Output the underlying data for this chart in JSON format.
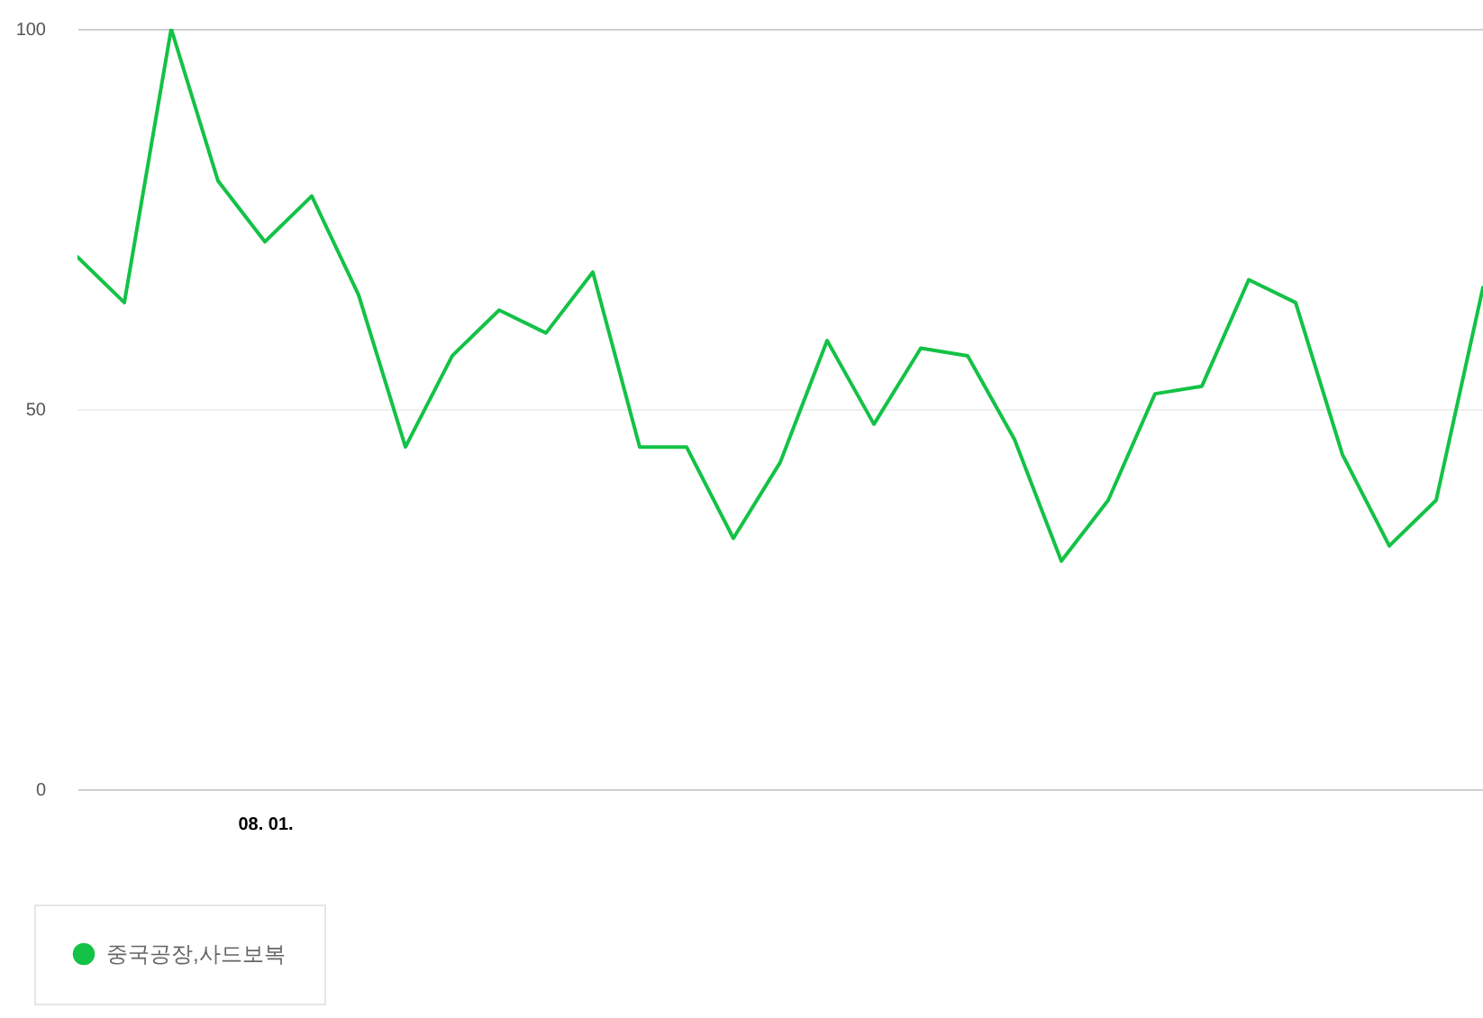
{
  "chart_data": {
    "type": "line",
    "categories": [
      null,
      null,
      null,
      null,
      "08. 01.",
      null,
      null,
      null,
      null,
      null,
      null,
      null,
      null,
      null,
      null,
      null,
      null,
      null,
      null,
      null,
      null,
      null,
      null,
      null,
      null,
      null,
      null,
      null,
      null,
      null,
      null
    ],
    "series": [
      {
        "name": "중국공장,사드보복",
        "color": "#13c246",
        "values": [
          70,
          64,
          100,
          80,
          72,
          78,
          65,
          45,
          57,
          63,
          60,
          68,
          45,
          45,
          33,
          43,
          59,
          48,
          58,
          57,
          46,
          30,
          38,
          52,
          53,
          67,
          64,
          44,
          32,
          38,
          66
        ]
      }
    ],
    "ylim": [
      0,
      100
    ],
    "yticks": [
      0,
      50,
      100
    ],
    "grid": "y",
    "legend": "bottom"
  }
}
